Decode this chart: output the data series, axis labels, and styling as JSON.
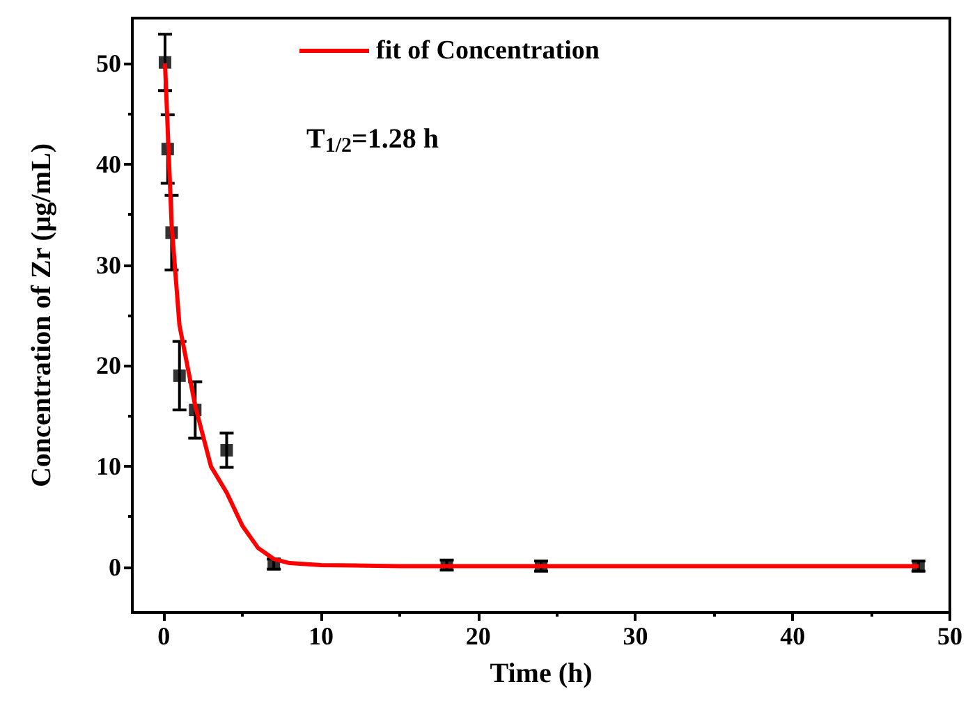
{
  "chart_data": {
    "type": "scatter",
    "xlabel": "Time (h)",
    "ylabel": "Concentration of Zr (μg/mL)",
    "xlim": [
      -2,
      50
    ],
    "xticks": [
      0,
      10,
      20,
      30,
      40,
      50
    ],
    "ylim": [
      -4.5,
      54.5
    ],
    "yticks": [
      0,
      10,
      20,
      30,
      40,
      50
    ],
    "grid": false,
    "legend": "top",
    "annotations": [
      "T$_{1/2}$=1.28 h"
    ],
    "series": [
      {
        "marker": "square",
        "color": "#000000",
        "x": [
          0.08,
          0.25,
          0.5,
          1,
          2,
          4,
          7,
          18,
          24,
          48
        ],
        "values": [
          50.1,
          41.5,
          33.2,
          19.0,
          15.6,
          11.6,
          0.3,
          0.2,
          0.1,
          0.1
        ],
        "errors": [
          2.8,
          3.4,
          3.7,
          3.4,
          2.8,
          1.7,
          0.5,
          0.5,
          0.5,
          0.5
        ]
      },
      {
        "type": "line",
        "marker": "none",
        "name": "fit of Concentration",
        "color": "#ff0000",
        "x": [
          0.08,
          0.5,
          1,
          2,
          3,
          4,
          5,
          6,
          7,
          8,
          10,
          15,
          48
        ],
        "values": [
          50,
          34,
          24,
          16,
          10,
          7.4,
          4.1,
          1.9,
          0.8,
          0.4,
          0.2,
          0.1,
          0.1
        ]
      }
    ]
  }
}
